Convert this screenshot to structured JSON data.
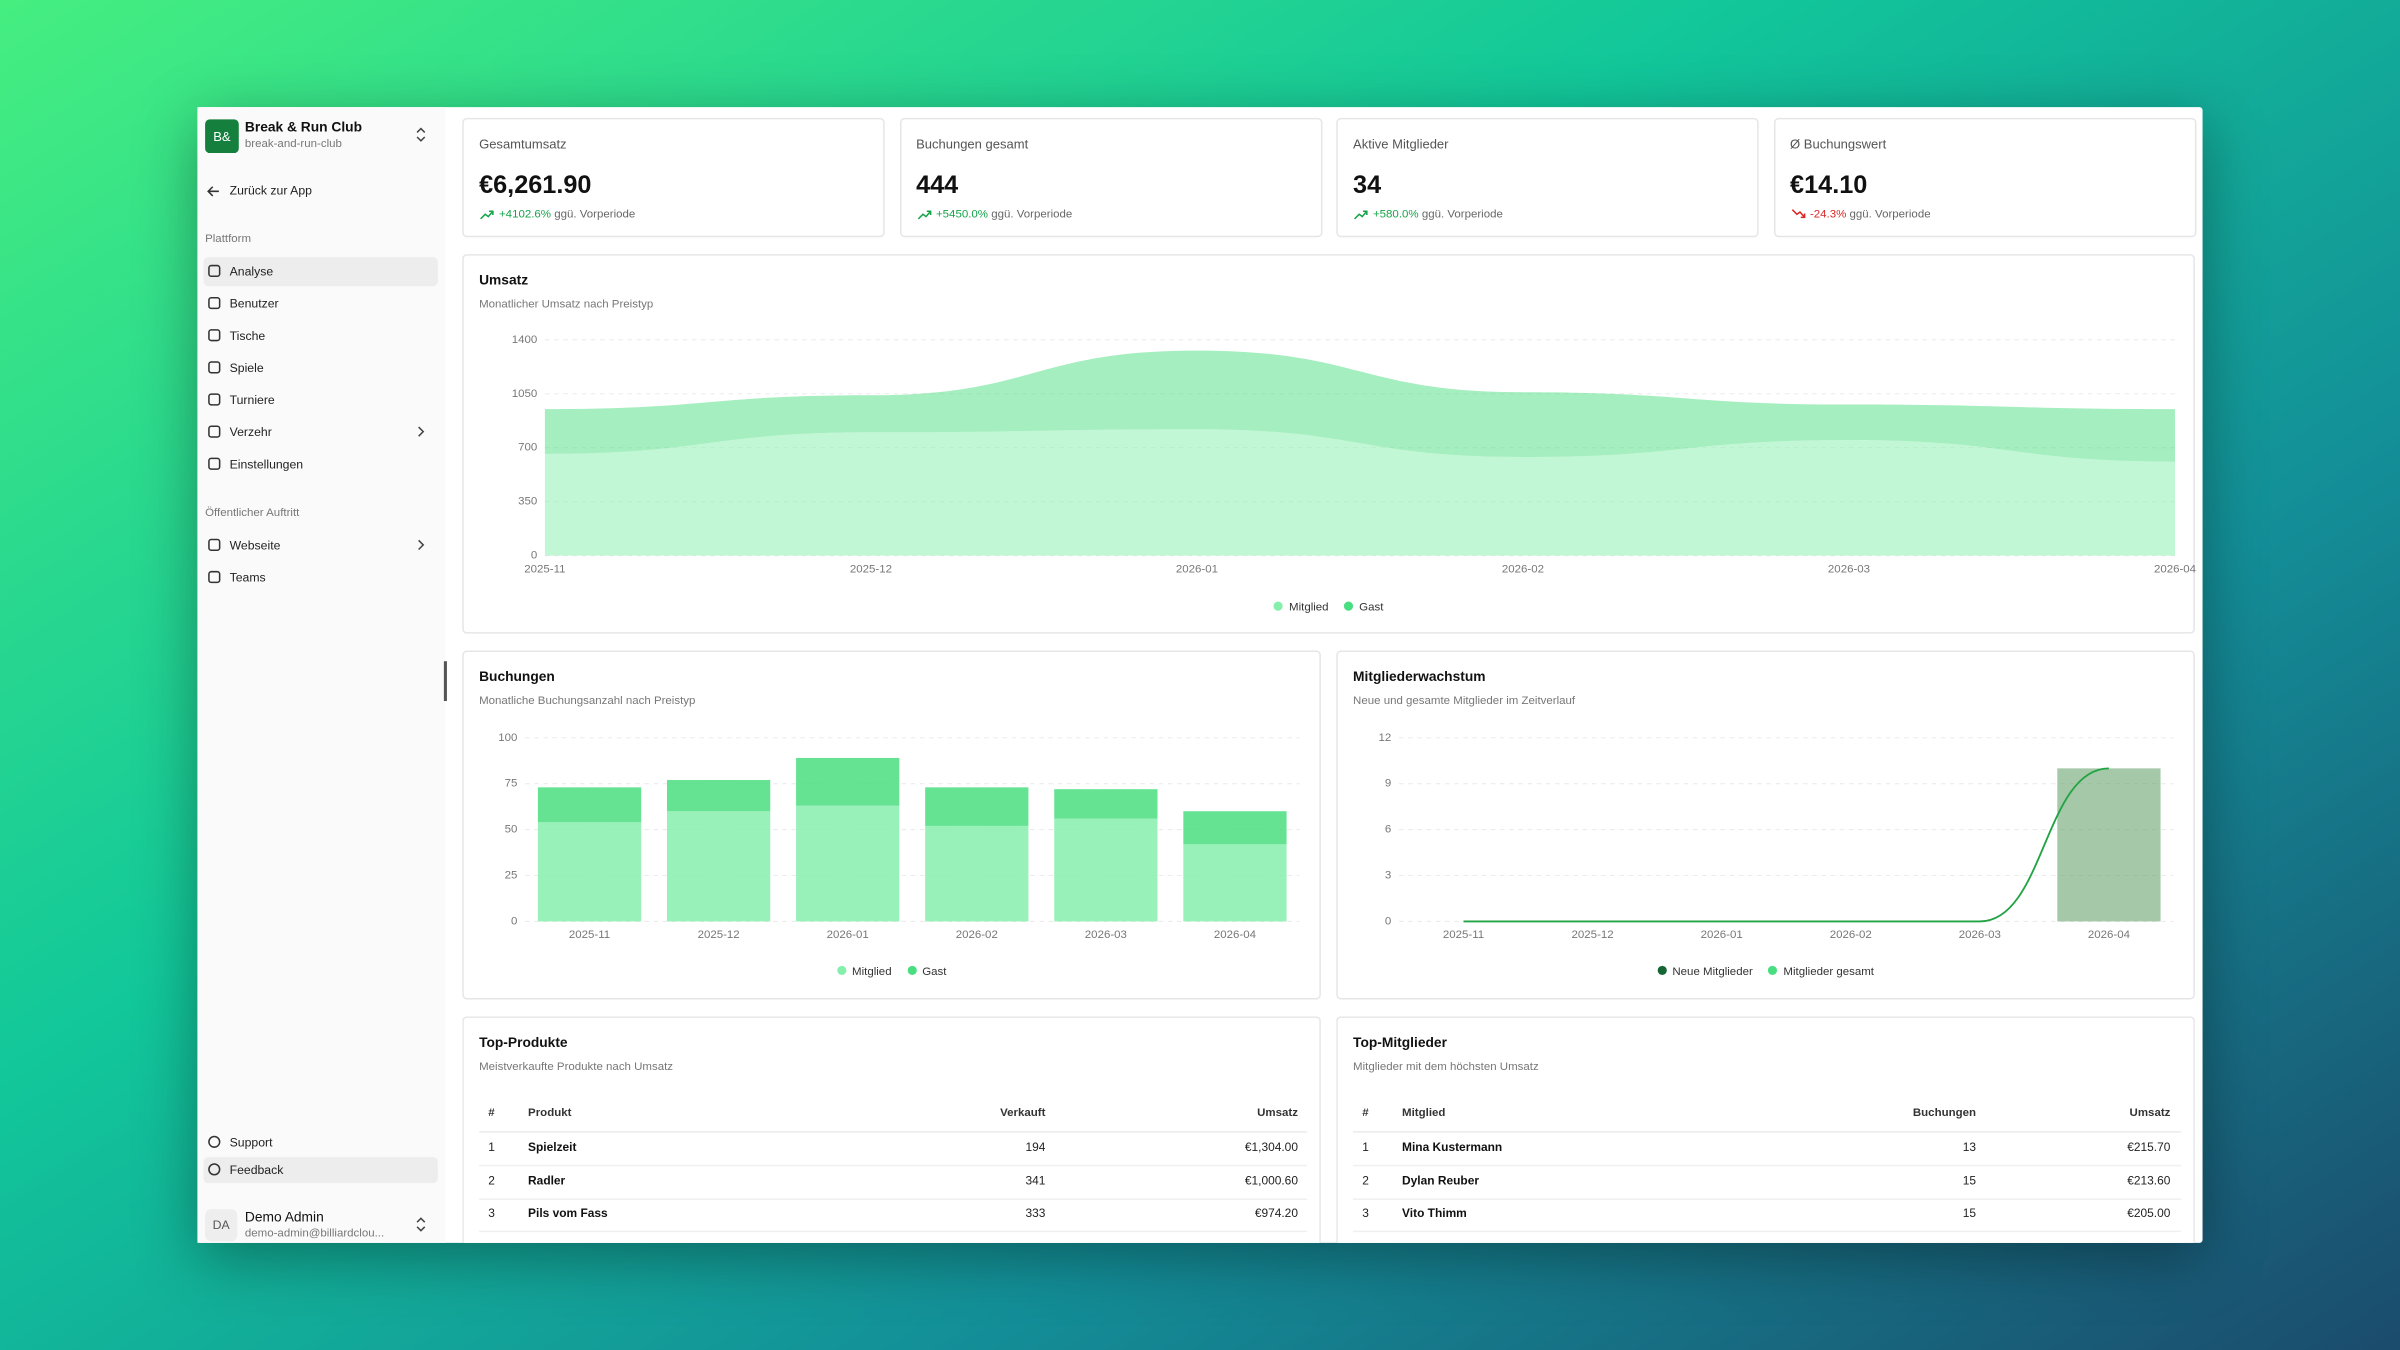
{
  "sidebar": {
    "org_initials": "B&",
    "org_name": "Break & Run Club",
    "org_slug": "break-and-run-club",
    "back": "Zurück zur App",
    "groups": [
      {
        "label": "Plattform",
        "items": [
          {
            "label": "Analyse",
            "active": true
          },
          {
            "label": "Benutzer"
          },
          {
            "label": "Tische"
          },
          {
            "label": "Spiele"
          },
          {
            "label": "Turniere"
          },
          {
            "label": "Verzehr",
            "expandable": true
          },
          {
            "label": "Einstellungen"
          }
        ]
      },
      {
        "label": "Öffentlicher Auftritt",
        "items": [
          {
            "label": "Webseite",
            "expandable": true
          },
          {
            "label": "Teams"
          }
        ]
      }
    ],
    "footer_links": [
      "Support",
      "Feedback"
    ],
    "user": {
      "initials": "DA",
      "name": "Demo Admin",
      "email": "demo-admin@billiardclou..."
    }
  },
  "kpis": [
    {
      "label": "Gesamtumsatz",
      "value": "€6,261.90",
      "change": "+4102.6%",
      "note": "ggü. Vorperiode"
    },
    {
      "label": "Buchungen gesamt",
      "value": "444",
      "change": "+5450.0%",
      "note": "ggü. Vorperiode"
    },
    {
      "label": "Aktive Mitglieder",
      "value": "34",
      "change": "+580.0%",
      "note": "ggü. Vorperiode"
    },
    {
      "label": "Ø Buchungswert",
      "value": "€14.10",
      "change": "-24.3%",
      "note": "ggü. Vorperiode"
    }
  ],
  "chart_data": [
    {
      "type": "area",
      "title": "Umsatz",
      "subtitle": "Monatlicher Umsatz nach Preistyp",
      "categories": [
        "2025-11",
        "2025-12",
        "2026-01",
        "2026-02",
        "2026-03",
        "2026-04"
      ],
      "series": [
        {
          "name": "Mitglied",
          "color": "#86efac",
          "values": [
            660,
            800,
            820,
            640,
            750,
            610
          ]
        },
        {
          "name": "Gast",
          "color": "#4ade80",
          "values": [
            290,
            240,
            510,
            420,
            230,
            340
          ]
        }
      ],
      "ylim": [
        0,
        1400
      ],
      "yticks": [
        0,
        350,
        700,
        1050,
        1400
      ],
      "grid": true
    },
    {
      "type": "bar",
      "title": "Buchungen",
      "subtitle": "Monatliche Buchungsanzahl nach Preistyp",
      "categories": [
        "2025-11",
        "2025-12",
        "2026-01",
        "2026-02",
        "2026-03",
        "2026-04"
      ],
      "series": [
        {
          "name": "Mitglied",
          "color": "#86efac",
          "values": [
            54,
            60,
            63,
            52,
            56,
            42
          ]
        },
        {
          "name": "Gast",
          "color": "#4ade80",
          "values": [
            19,
            17,
            26,
            21,
            16,
            18
          ]
        }
      ],
      "ylim": [
        0,
        100
      ],
      "yticks": [
        0,
        25,
        50,
        75,
        100
      ],
      "grid": true
    },
    {
      "type": "composed",
      "title": "Mitgliederwachstum",
      "subtitle": "Neue und gesamte Mitglieder im Zeitverlauf",
      "categories": [
        "2025-11",
        "2025-12",
        "2026-01",
        "2026-02",
        "2026-03",
        "2026-04"
      ],
      "series": [
        {
          "name": "Neue Mitglieder",
          "color": "#166534",
          "mark": "line",
          "values": [
            0,
            0,
            0,
            0,
            0,
            10
          ]
        },
        {
          "name": "Mitglieder gesamt",
          "color": "#4ade80",
          "mark": "bar",
          "values": [
            0,
            0,
            0,
            0,
            0,
            10
          ]
        }
      ],
      "ylim": [
        0,
        12
      ],
      "yticks": [
        0,
        3,
        6,
        9,
        12
      ],
      "grid": true
    }
  ],
  "tables": [
    {
      "title": "Top-Produkte",
      "subtitle": "Meistverkaufte Produkte nach Umsatz",
      "columns": [
        "#",
        "Produkt",
        "Verkauft",
        "Umsatz"
      ],
      "rows": [
        [
          1,
          "Spielzeit",
          194,
          "€1,304.00"
        ],
        [
          2,
          "Radler",
          341,
          "€1,000.60"
        ],
        [
          3,
          "Pils vom Fass",
          333,
          "€974.20"
        ]
      ]
    },
    {
      "title": "Top-Mitglieder",
      "subtitle": "Mitglieder mit dem höchsten Umsatz",
      "columns": [
        "#",
        "Mitglied",
        "Buchungen",
        "Umsatz"
      ],
      "rows": [
        [
          1,
          "Mina Kustermann",
          13,
          "€215.70"
        ],
        [
          2,
          "Dylan Reuber",
          15,
          "€213.60"
        ],
        [
          3,
          "Vito Thimm",
          15,
          "€205.00"
        ]
      ]
    }
  ]
}
